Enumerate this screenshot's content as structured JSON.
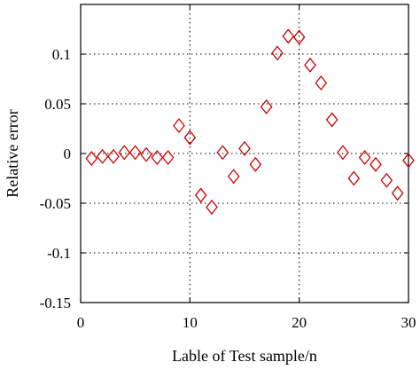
{
  "chart_data": {
    "type": "scatter",
    "xlabel": "Lable of Test sample/n",
    "ylabel": "Relative error",
    "xlim": [
      0,
      30
    ],
    "ylim": [
      -0.15,
      0.15
    ],
    "xticks": [
      0,
      10,
      20,
      30
    ],
    "yticks": [
      -0.15,
      -0.1,
      -0.05,
      0,
      0.05,
      0.1
    ],
    "xtick_labels": [
      "0",
      "10",
      "20",
      "30"
    ],
    "ytick_labels": [
      "-0.15",
      "-0.1",
      "-0.05",
      "0",
      "0.05",
      "0.1"
    ],
    "grid": true,
    "marker": "diamond-open",
    "marker_color": "#cc0000",
    "series": [
      {
        "x": [
          1,
          2,
          3,
          4,
          5,
          6,
          7,
          8,
          9,
          10,
          11,
          12,
          13,
          14,
          15,
          16,
          17,
          18,
          19,
          20,
          21,
          22,
          23,
          24,
          25,
          26,
          27,
          28,
          29,
          30
        ],
        "y": [
          -0.005,
          -0.003,
          -0.003,
          0.001,
          0.001,
          -0.001,
          -0.004,
          -0.004,
          0.028,
          0.016,
          -0.042,
          -0.054,
          0.001,
          -0.023,
          0.005,
          -0.011,
          0.047,
          0.101,
          0.118,
          0.117,
          0.089,
          0.071,
          0.034,
          0.001,
          -0.025,
          -0.004,
          -0.011,
          -0.027,
          -0.04,
          -0.007
        ]
      }
    ]
  }
}
